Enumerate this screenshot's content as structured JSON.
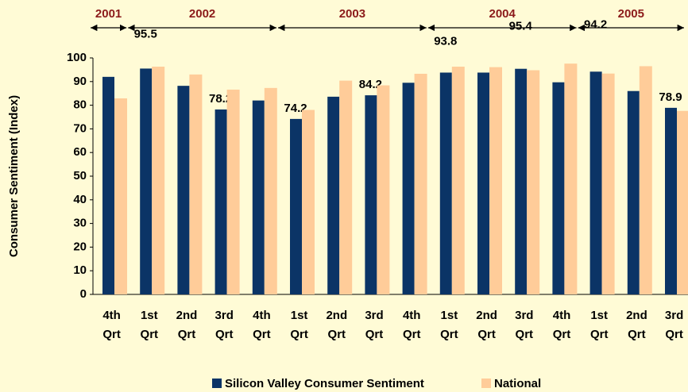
{
  "chart_data": {
    "type": "bar",
    "y_label": "Consumer Sentiment (Index)",
    "groups": [
      {
        "label": "2001",
        "categories": [
          [
            "4th",
            "Qrt"
          ]
        ]
      },
      {
        "label": "2002",
        "categories": [
          [
            "1st",
            "Qrt"
          ],
          [
            "2nd",
            "Qrt"
          ],
          [
            "3rd",
            "Qrt"
          ],
          [
            "4th",
            "Qrt"
          ]
        ]
      },
      {
        "label": "2003",
        "categories": [
          [
            "1st",
            "Qrt"
          ],
          [
            "2nd",
            "Qrt"
          ],
          [
            "3rd",
            "Qrt"
          ],
          [
            "4th",
            "Qrt"
          ]
        ]
      },
      {
        "label": "2004",
        "categories": [
          [
            "1st",
            "Qrt"
          ],
          [
            "2nd",
            "Qrt"
          ],
          [
            "3rd",
            "Qrt"
          ],
          [
            "4th",
            "Qrt"
          ]
        ]
      },
      {
        "label": "2005",
        "categories": [
          [
            "1st",
            "Qrt"
          ],
          [
            "2nd",
            "Qrt"
          ],
          [
            "3rd",
            "Qrt"
          ]
        ]
      }
    ],
    "series": [
      {
        "name": "Silicon Valley Consumer Sentiment",
        "color": "#0b3466",
        "values": [
          92,
          95.5,
          88.2,
          78.2,
          82,
          74.2,
          83.6,
          84.2,
          89.5,
          93.8,
          93.8,
          95.4,
          89.7,
          94.2,
          86,
          78.9
        ],
        "value_labels": [
          null,
          "95.5",
          null,
          "78.2",
          null,
          "74.2",
          null,
          "84.2",
          null,
          "93.8",
          null,
          "95.4",
          null,
          "94.2",
          null,
          "78.9"
        ]
      },
      {
        "name": "National",
        "color": "#ffcc99",
        "values": [
          82.9,
          96.3,
          93,
          86.6,
          87.3,
          78,
          90.4,
          88.4,
          93.3,
          96.3,
          96.1,
          94.8,
          97.6,
          93.4,
          96.5,
          77.6
        ]
      }
    ],
    "ylim": [
      0,
      100
    ],
    "yticks": [
      0,
      10,
      20,
      30,
      40,
      50,
      60,
      70,
      80,
      90,
      100
    ],
    "grid": false,
    "legend": "bottom"
  }
}
